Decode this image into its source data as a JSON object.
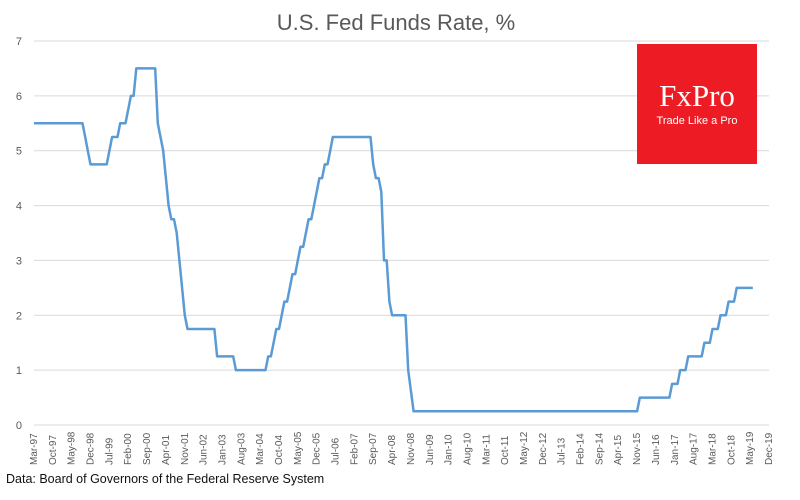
{
  "chart_data": {
    "type": "line",
    "title": "U.S. Fed Funds Rate, %",
    "xlabel": "",
    "ylabel": "",
    "ylim": [
      0,
      7
    ],
    "yticks": [
      0,
      1,
      2,
      3,
      4,
      5,
      6,
      7
    ],
    "x_range": [
      "Mar-97",
      "Dec-19"
    ],
    "x_tick_labels": [
      "Mar-97",
      "Oct-97",
      "May-98",
      "Dec-98",
      "Jul-99",
      "Feb-00",
      "Sep-00",
      "Apr-01",
      "Nov-01",
      "Jun-02",
      "Jan-03",
      "Aug-03",
      "Mar-04",
      "Oct-04",
      "May-05",
      "Dec-05",
      "Jul-06",
      "Feb-07",
      "Sep-07",
      "Apr-08",
      "Nov-08",
      "Jun-09",
      "Jan-10",
      "Aug-10",
      "Mar-11",
      "Oct-11",
      "May-12",
      "Dec-12",
      "Jul-13",
      "Feb-14",
      "Sep-14",
      "Apr-15",
      "Nov-15",
      "Jun-16",
      "Jan-17",
      "Aug-17",
      "Mar-18",
      "Oct-18",
      "May-19",
      "Dec-19"
    ],
    "grid": true,
    "legend": "none",
    "series": [
      {
        "name": "Fed Funds Rate",
        "color": "#5b9bd5",
        "points": [
          {
            "x": "1997-03",
            "y": 5.5
          },
          {
            "x": "1998-09",
            "y": 5.5
          },
          {
            "x": "1998-10",
            "y": 5.25
          },
          {
            "x": "1998-11",
            "y": 5.0
          },
          {
            "x": "1998-12",
            "y": 4.75
          },
          {
            "x": "1999-06",
            "y": 4.75
          },
          {
            "x": "1999-07",
            "y": 5.0
          },
          {
            "x": "1999-08",
            "y": 5.25
          },
          {
            "x": "1999-10",
            "y": 5.25
          },
          {
            "x": "1999-11",
            "y": 5.5
          },
          {
            "x": "2000-01",
            "y": 5.5
          },
          {
            "x": "2000-02",
            "y": 5.75
          },
          {
            "x": "2000-03",
            "y": 6.0
          },
          {
            "x": "2000-04",
            "y": 6.0
          },
          {
            "x": "2000-05",
            "y": 6.5
          },
          {
            "x": "2000-12",
            "y": 6.5
          },
          {
            "x": "2001-01",
            "y": 5.5
          },
          {
            "x": "2001-03",
            "y": 5.0
          },
          {
            "x": "2001-04",
            "y": 4.5
          },
          {
            "x": "2001-05",
            "y": 4.0
          },
          {
            "x": "2001-06",
            "y": 3.75
          },
          {
            "x": "2001-07",
            "y": 3.75
          },
          {
            "x": "2001-08",
            "y": 3.5
          },
          {
            "x": "2001-09",
            "y": 3.0
          },
          {
            "x": "2001-10",
            "y": 2.5
          },
          {
            "x": "2001-11",
            "y": 2.0
          },
          {
            "x": "2001-12",
            "y": 1.75
          },
          {
            "x": "2002-10",
            "y": 1.75
          },
          {
            "x": "2002-11",
            "y": 1.25
          },
          {
            "x": "2003-05",
            "y": 1.25
          },
          {
            "x": "2003-06",
            "y": 1.0
          },
          {
            "x": "2004-05",
            "y": 1.0
          },
          {
            "x": "2004-06",
            "y": 1.25
          },
          {
            "x": "2004-07",
            "y": 1.25
          },
          {
            "x": "2004-08",
            "y": 1.5
          },
          {
            "x": "2004-09",
            "y": 1.75
          },
          {
            "x": "2004-10",
            "y": 1.75
          },
          {
            "x": "2004-11",
            "y": 2.0
          },
          {
            "x": "2004-12",
            "y": 2.25
          },
          {
            "x": "2005-01",
            "y": 2.25
          },
          {
            "x": "2005-02",
            "y": 2.5
          },
          {
            "x": "2005-03",
            "y": 2.75
          },
          {
            "x": "2005-04",
            "y": 2.75
          },
          {
            "x": "2005-05",
            "y": 3.0
          },
          {
            "x": "2005-06",
            "y": 3.25
          },
          {
            "x": "2005-07",
            "y": 3.25
          },
          {
            "x": "2005-08",
            "y": 3.5
          },
          {
            "x": "2005-09",
            "y": 3.75
          },
          {
            "x": "2005-10",
            "y": 3.75
          },
          {
            "x": "2005-11",
            "y": 4.0
          },
          {
            "x": "2005-12",
            "y": 4.25
          },
          {
            "x": "2006-01",
            "y": 4.5
          },
          {
            "x": "2006-02",
            "y": 4.5
          },
          {
            "x": "2006-03",
            "y": 4.75
          },
          {
            "x": "2006-04",
            "y": 4.75
          },
          {
            "x": "2006-05",
            "y": 5.0
          },
          {
            "x": "2006-06",
            "y": 5.25
          },
          {
            "x": "2007-08",
            "y": 5.25
          },
          {
            "x": "2007-09",
            "y": 4.75
          },
          {
            "x": "2007-10",
            "y": 4.5
          },
          {
            "x": "2007-11",
            "y": 4.5
          },
          {
            "x": "2007-12",
            "y": 4.25
          },
          {
            "x": "2008-01",
            "y": 3.0
          },
          {
            "x": "2008-02",
            "y": 3.0
          },
          {
            "x": "2008-03",
            "y": 2.25
          },
          {
            "x": "2008-04",
            "y": 2.0
          },
          {
            "x": "2008-09",
            "y": 2.0
          },
          {
            "x": "2008-10",
            "y": 1.0
          },
          {
            "x": "2008-12",
            "y": 0.25
          },
          {
            "x": "2015-11",
            "y": 0.25
          },
          {
            "x": "2015-12",
            "y": 0.5
          },
          {
            "x": "2016-11",
            "y": 0.5
          },
          {
            "x": "2016-12",
            "y": 0.75
          },
          {
            "x": "2017-02",
            "y": 0.75
          },
          {
            "x": "2017-03",
            "y": 1.0
          },
          {
            "x": "2017-05",
            "y": 1.0
          },
          {
            "x": "2017-06",
            "y": 1.25
          },
          {
            "x": "2017-11",
            "y": 1.25
          },
          {
            "x": "2017-12",
            "y": 1.5
          },
          {
            "x": "2018-02",
            "y": 1.5
          },
          {
            "x": "2018-03",
            "y": 1.75
          },
          {
            "x": "2018-05",
            "y": 1.75
          },
          {
            "x": "2018-06",
            "y": 2.0
          },
          {
            "x": "2018-08",
            "y": 2.0
          },
          {
            "x": "2018-09",
            "y": 2.25
          },
          {
            "x": "2018-11",
            "y": 2.25
          },
          {
            "x": "2018-12",
            "y": 2.5
          },
          {
            "x": "2019-06",
            "y": 2.5
          }
        ]
      }
    ],
    "source": "Data: Board of Governors of the Federal Reserve System"
  },
  "logo": {
    "name": "FxPro",
    "tagline": "Trade Like a Pro",
    "color": "#ed1c24"
  }
}
